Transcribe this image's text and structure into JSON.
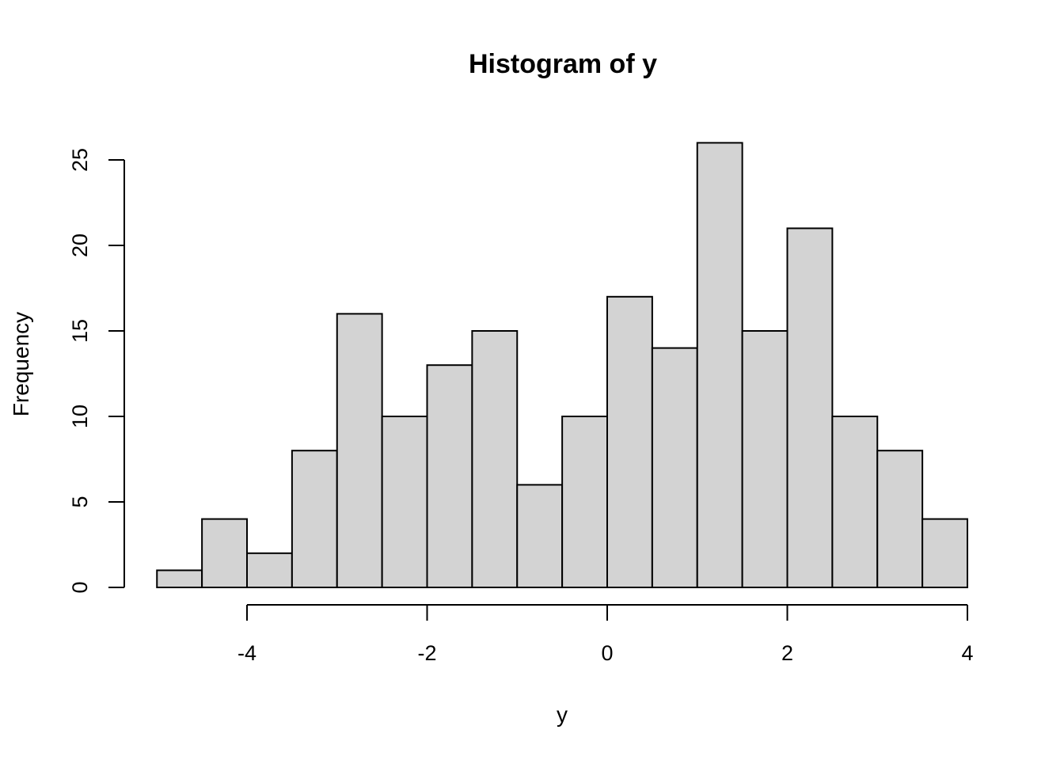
{
  "chart_data": {
    "type": "bar",
    "title": "Histogram of y",
    "xlabel": "y",
    "ylabel": "Frequency",
    "bin_edges": [
      -5,
      -4.5,
      -4,
      -3.5,
      -3,
      -2.5,
      -2,
      -1.5,
      -1,
      -0.5,
      0,
      0.5,
      1,
      1.5,
      2,
      2.5,
      3,
      3.5,
      4
    ],
    "values": [
      1,
      4,
      2,
      8,
      16,
      10,
      13,
      15,
      6,
      10,
      17,
      14,
      26,
      15,
      21,
      10,
      8,
      4
    ],
    "xlim": [
      -5,
      4
    ],
    "ylim": [
      0,
      26
    ],
    "x_ticks": [
      -4,
      -2,
      0,
      2,
      4
    ],
    "x_tick_labels": [
      "-4",
      "-2",
      "0",
      "2",
      "4"
    ],
    "y_ticks": [
      0,
      5,
      10,
      15,
      20,
      25
    ],
    "y_tick_labels": [
      "0",
      "5",
      "10",
      "15",
      "20",
      "25"
    ],
    "bar_fill": "#d3d3d3",
    "grid": false,
    "legend": "none"
  }
}
